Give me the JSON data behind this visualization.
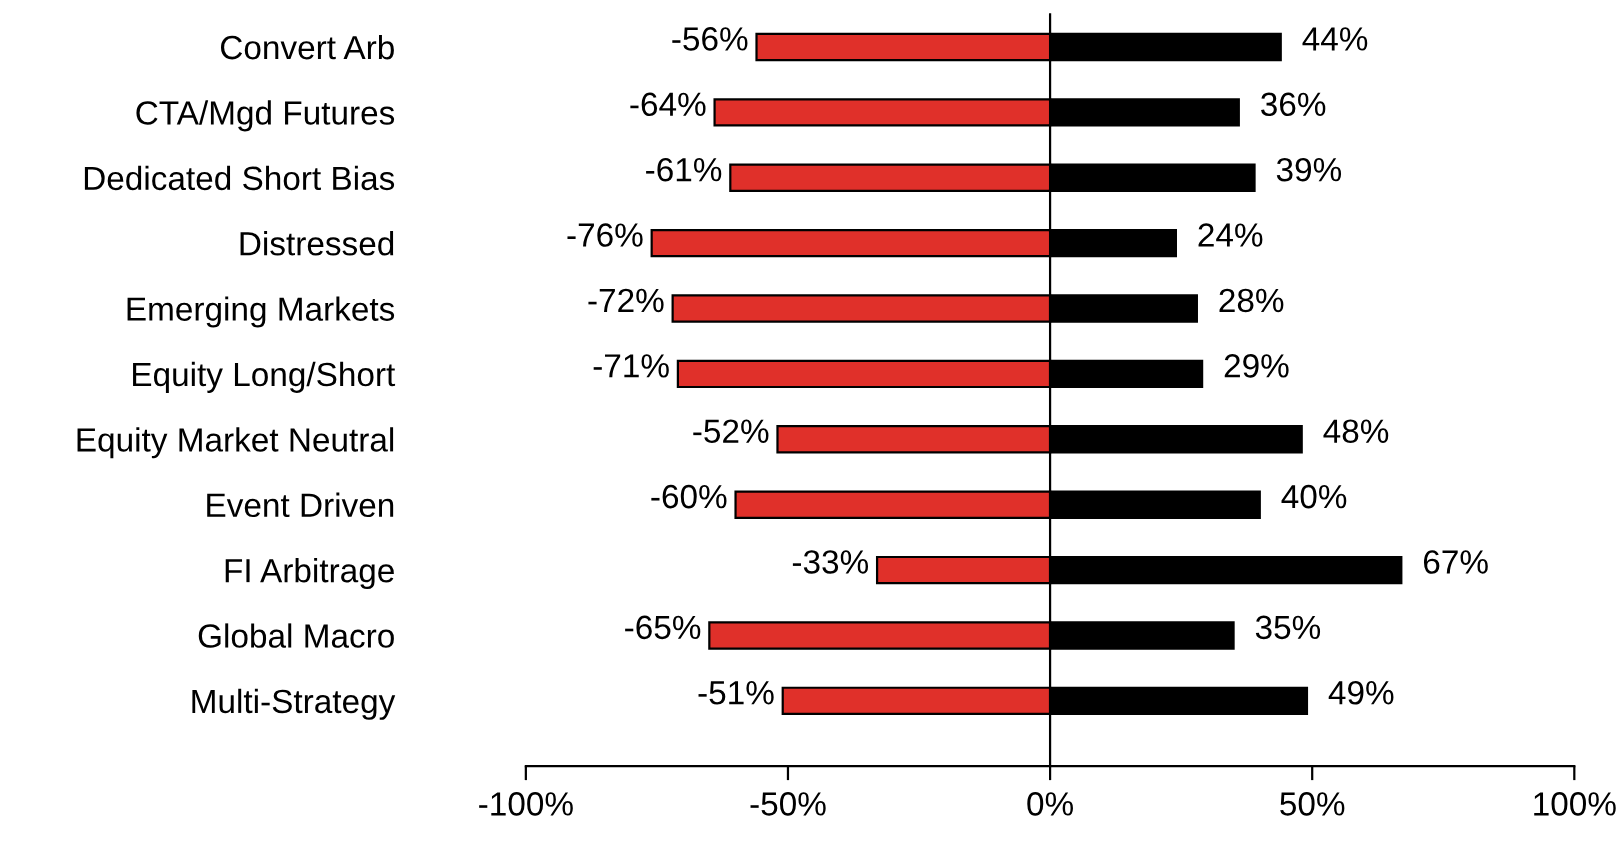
{
  "chart_data": {
    "type": "bar",
    "orientation": "horizontal",
    "stacked": true,
    "categories": [
      "Convert Arb",
      "CTA/Mgd Futures",
      "Dedicated Short Bias",
      "Distressed",
      "Emerging Markets",
      "Equity Long/Short",
      "Equity Market Neutral",
      "Event Driven",
      "FI Arbitrage",
      "Global Macro",
      "Multi-Strategy"
    ],
    "series": [
      {
        "color": "#e0302a",
        "values": [
          -56,
          -64,
          -61,
          -76,
          -72,
          -71,
          -52,
          -60,
          -33,
          -65,
          -51
        ],
        "value_labels": [
          "-56%",
          "-64%",
          "-61%",
          "-76%",
          "-72%",
          "-71%",
          "-52%",
          "-60%",
          "-33%",
          "-65%",
          "-51%"
        ]
      },
      {
        "color": "#000000",
        "values": [
          44,
          36,
          39,
          24,
          28,
          29,
          48,
          40,
          67,
          35,
          49
        ],
        "value_labels": [
          "44%",
          "36%",
          "39%",
          "24%",
          "28%",
          "29%",
          "48%",
          "40%",
          "67%",
          "35%",
          "49%"
        ]
      }
    ],
    "xlim": [
      -100,
      100
    ],
    "xticks": [
      {
        "value": -100,
        "label": "-100%"
      },
      {
        "value": -50,
        "label": "-50%"
      },
      {
        "value": 0,
        "label": "0%"
      },
      {
        "value": 50,
        "label": "50%"
      },
      {
        "value": 100,
        "label": "100%"
      }
    ],
    "legend": false
  }
}
